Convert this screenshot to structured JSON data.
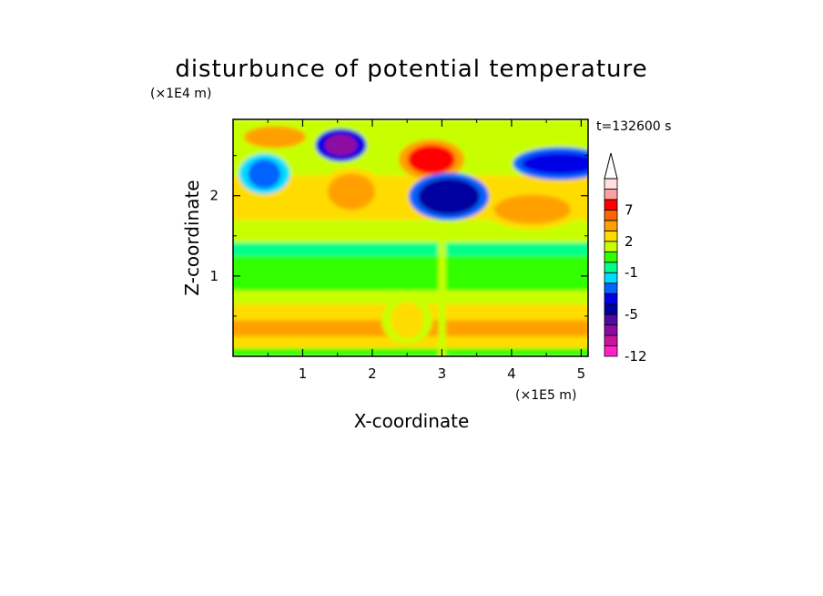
{
  "chart_data": {
    "type": "heatmap",
    "title": "disturbunce of potential temperature",
    "xlabel": "X-coordinate",
    "ylabel": "Z-coordinate",
    "x_unit": "(×1E5 m)",
    "y_unit": "(×1E4 m)",
    "time_label": "t=132600 s",
    "x_ticks": [
      "1",
      "2",
      "3",
      "4",
      "5"
    ],
    "y_ticks": [
      "1",
      "2"
    ],
    "xlim": [
      0,
      5.1
    ],
    "ylim": [
      0,
      2.95
    ],
    "colorbar": {
      "labels": [
        "7",
        "2",
        "-1",
        "-5",
        "-12"
      ],
      "levels": [
        -12,
        -10,
        -8,
        -6,
        -5,
        -4,
        -3,
        -2,
        -1,
        0,
        1,
        2,
        3,
        5,
        7,
        9,
        11
      ],
      "colors": [
        "#ff22c8",
        "#c8149b",
        "#8c0aa0",
        "#500aa0",
        "#0000a0",
        "#0000e6",
        "#0064ff",
        "#00dcff",
        "#00ff8c",
        "#32ff00",
        "#c8ff00",
        "#ffdc00",
        "#ffa000",
        "#ff6400",
        "#ff0000",
        "#ffa0a0",
        "#ffe0e0"
      ]
    },
    "features": [
      {
        "x": 1.55,
        "z": 2.63,
        "value": -7
      },
      {
        "x": 2.85,
        "z": 2.45,
        "value": 8
      },
      {
        "x": 3.1,
        "z": 1.99,
        "value": -4.5
      },
      {
        "x": 4.7,
        "z": 2.4,
        "value": -4
      },
      {
        "x": 0.45,
        "z": 2.27,
        "value": -3
      },
      {
        "x": 1.7,
        "z": 2.05,
        "value": 4.5
      },
      {
        "x": 0.6,
        "z": 2.73,
        "value": 3
      },
      {
        "x": 4.3,
        "z": 1.83,
        "value": 4
      },
      {
        "x": 2.5,
        "z": 0.45,
        "value": 2.5
      }
    ]
  }
}
